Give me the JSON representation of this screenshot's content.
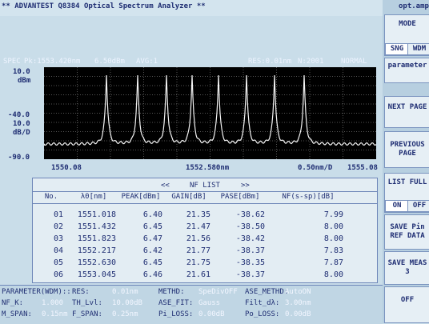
{
  "header": {
    "title": "** ADVANTEST Q8384 Optical Spectrum Analyzer **",
    "menu_title": "opt.amp"
  },
  "status": {
    "label": "SPEC",
    "peak": "Pk:1553.420nm",
    "level": "6.50dBm",
    "avg": "AVG:1",
    "res": "RES:0.01nm",
    "points": "N:2001",
    "mode": "NORMAL"
  },
  "graph": {
    "y_top": "10.0",
    "y_unit": "dBm",
    "y_mid": "-40.0",
    "scale": "10.0",
    "scale_unit": "dB/D",
    "y_bottom": "-90.0",
    "x_start": "1550.08",
    "x_center": "1552.580nm",
    "x_span": "0.50nm/D",
    "x_end": "1555.08"
  },
  "table": {
    "nav_prev": "<<",
    "title": "NF LIST",
    "nav_next": ">>",
    "columns": [
      "No.",
      "λ0[nm]",
      "PEAK[dBm]",
      "GAIN[dB]",
      "PASE[dBm]",
      "NF(s-sp)[dB]"
    ],
    "rows": [
      [
        "01",
        "1551.018",
        "6.40",
        "21.35",
        "-38.62",
        "7.99"
      ],
      [
        "02",
        "1551.432",
        "6.45",
        "21.47",
        "-38.50",
        "8.00"
      ],
      [
        "03",
        "1551.823",
        "6.47",
        "21.56",
        "-38.42",
        "8.00"
      ],
      [
        "04",
        "1552.217",
        "6.42",
        "21.77",
        "-38.37",
        "7.83"
      ],
      [
        "05",
        "1552.630",
        "6.45",
        "21.75",
        "-38.35",
        "7.87"
      ],
      [
        "06",
        "1553.045",
        "6.46",
        "21.61",
        "-38.37",
        "8.00"
      ]
    ]
  },
  "parameters": {
    "title": "PARAMETER(WDM)::",
    "rows": [
      [
        {
          "label": "RES:",
          "value": "0.01nm"
        },
        {
          "label": "METHD:",
          "value": "SpeDivOFF"
        },
        {
          "label": "ASE_METHD:",
          "value": "AutoON"
        }
      ],
      [
        {
          "label": "NF_K:",
          "value": "1.000"
        },
        {
          "label": "TH_Lvl:",
          "value": "10.00dB"
        },
        {
          "label": "ASE_FIT:",
          "value": "Gauss"
        },
        {
          "label": "Filt_dλ:",
          "value": "3.00nm"
        }
      ],
      [
        {
          "label": "M_SPAN:",
          "value": "0.15nm"
        },
        {
          "label": "F_SPAN:",
          "value": "0.25nm"
        },
        {
          "label": "Pi_LOSS:",
          "value": "0.00dB"
        },
        {
          "label": "Po_LOSS:",
          "value": "0.00dB"
        }
      ]
    ]
  },
  "softkeys": [
    {
      "label": "MODE",
      "options": [
        "SNG",
        "WDM"
      ]
    },
    {
      "label": "parameter"
    },
    {
      "label": "NEXT PAGE"
    },
    {
      "label": "PREVIOUS PAGE"
    },
    {
      "label": "LIST FULL",
      "options": [
        "ON",
        "OFF"
      ]
    },
    {
      "label": "SAVE Pin REF DATA"
    },
    {
      "label": "SAVE MEAS 3"
    },
    {
      "label": "OFF"
    }
  ]
}
